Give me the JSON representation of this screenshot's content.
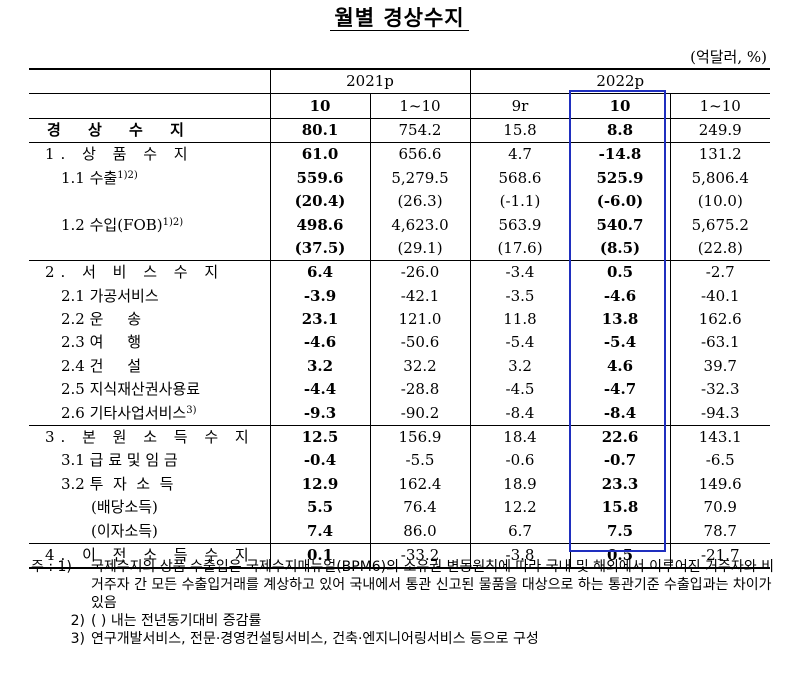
{
  "title": "월별 경상수지",
  "unit": "(억달러, %)",
  "years": {
    "y2021": "2021p",
    "y2022": "2022p"
  },
  "subheads": [
    "10",
    "1~10",
    "9r",
    "10",
    "1~10"
  ],
  "rows": [
    {
      "label": "경 상 수 지",
      "v": [
        "80.1",
        "754.2",
        "15.8",
        "8.8",
        "249.9"
      ]
    },
    {
      "label": "1. 상 품 수 지",
      "v": [
        "61.0",
        "656.6",
        "4.7",
        "-14.8",
        "131.2"
      ]
    },
    {
      "label": "1.1 수출",
      "sup": "1)2)",
      "v": [
        "559.6",
        "5,279.5",
        "568.6",
        "525.9",
        "5,806.4"
      ]
    },
    {
      "label": "",
      "v": [
        "(20.4)",
        "(26.3)",
        "(-1.1)",
        "(-6.0)",
        "(10.0)"
      ]
    },
    {
      "label": "1.2 수입(FOB)",
      "sup": "1)2)",
      "v": [
        "498.6",
        "4,623.0",
        "563.9",
        "540.7",
        "5,675.2"
      ]
    },
    {
      "label": "",
      "v": [
        "(37.5)",
        "(29.1)",
        "(17.6)",
        "(8.5)",
        "(22.8)"
      ]
    },
    {
      "label": "2. 서 비 스 수 지",
      "v": [
        "6.4",
        "-26.0",
        "-3.4",
        "0.5",
        "-2.7"
      ]
    },
    {
      "label": "2.1 가공서비스",
      "v": [
        "-3.9",
        "-42.1",
        "-3.5",
        "-4.6",
        "-40.1"
      ]
    },
    {
      "label": "2.2 운     송",
      "v": [
        "23.1",
        "121.0",
        "11.8",
        "13.8",
        "162.6"
      ]
    },
    {
      "label": "2.3 여     행",
      "v": [
        "-4.6",
        "-50.6",
        "-5.4",
        "-5.4",
        "-63.1"
      ]
    },
    {
      "label": "2.4 건     설",
      "v": [
        "3.2",
        "32.2",
        "3.2",
        "4.6",
        "39.7"
      ]
    },
    {
      "label": "2.5 지식재산권사용료",
      "v": [
        "-4.4",
        "-28.8",
        "-4.5",
        "-4.7",
        "-32.3"
      ]
    },
    {
      "label": "2.6 기타사업서비스",
      "sup": "3)",
      "v": [
        "-9.3",
        "-90.2",
        "-8.4",
        "-8.4",
        "-94.3"
      ]
    },
    {
      "label": "3. 본 원 소 득 수 지",
      "v": [
        "12.5",
        "156.9",
        "18.4",
        "22.6",
        "143.1"
      ]
    },
    {
      "label": "3.1 급 료 및 임 금",
      "v": [
        "-0.4",
        "-5.5",
        "-0.6",
        "-0.7",
        "-6.5"
      ]
    },
    {
      "label": "3.2 투  자  소  득",
      "v": [
        "12.9",
        "162.4",
        "18.9",
        "23.3",
        "149.6"
      ]
    },
    {
      "label": "(배당소득)",
      "v": [
        "5.5",
        "76.4",
        "12.2",
        "15.8",
        "70.9"
      ]
    },
    {
      "label": "(이자소득)",
      "v": [
        "7.4",
        "86.0",
        "6.7",
        "7.5",
        "78.7"
      ]
    },
    {
      "label": "4. 이 전 소 득 수 지",
      "v": [
        "0.1",
        "-33.2",
        "-3.8",
        "0.5",
        "-21.7"
      ]
    }
  ],
  "notes": {
    "lead": "주 :",
    "n1_num": "1)",
    "n1_text": "국제수지의 상품 수출입은 국제수지매뉴얼(BPM6)의 소유권 변동원칙에 따라 국내 및 해외에서 이루어진 거주자와 비거주자 간 모든 수출입거래를 계상하고 있어 국내에서 통관 신고된 물품을 대상으로 하는 통관기준 수출입과는 차이가 있음",
    "n2_num": "2)",
    "n2_text": "(  ) 내는 전년동기대비 증감률",
    "n3_num": "3)",
    "n3_text": "연구개발서비스, 전문·경영컨설팅서비스, 건축·엔지니어링서비스 등으로 구성"
  },
  "colors": {
    "highlight_border": "#1f2fbf"
  }
}
